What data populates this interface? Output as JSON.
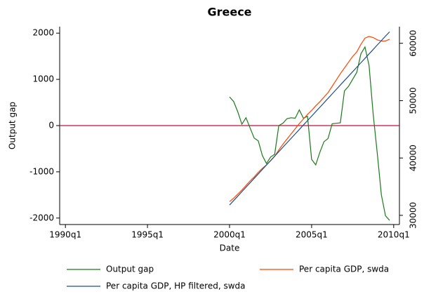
{
  "chart_data": {
    "type": "line",
    "title": "Greece",
    "x_label": "Date",
    "y_label": "Output gap",
    "x": [
      2000.0,
      2000.25,
      2000.5,
      2000.75,
      2001.0,
      2001.25,
      2001.5,
      2001.75,
      2002.0,
      2002.25,
      2002.5,
      2002.75,
      2003.0,
      2003.25,
      2003.5,
      2003.75,
      2004.0,
      2004.25,
      2004.5,
      2004.75,
      2005.0,
      2005.25,
      2005.5,
      2005.75,
      2006.0,
      2006.25,
      2006.5,
      2006.75,
      2007.0,
      2007.25,
      2007.5,
      2007.75,
      2008.0,
      2008.25,
      2008.5,
      2008.75,
      2009.0,
      2009.25,
      2009.5,
      2009.75
    ],
    "series": [
      {
        "name": "Output gap",
        "color": "#1a7a1a",
        "axis": "y",
        "values": [
          620,
          520,
          300,
          30,
          170,
          -50,
          -270,
          -330,
          -650,
          -820,
          -680,
          -620,
          0,
          50,
          150,
          170,
          160,
          340,
          160,
          200,
          -730,
          -850,
          -580,
          -350,
          -280,
          40,
          50,
          60,
          750,
          850,
          1000,
          1150,
          1550,
          1700,
          1300,
          250,
          -600,
          -1500,
          -1950,
          -2050
        ]
      },
      {
        "name": "Per capita GDP, swda",
        "color": "#ff4500",
        "axis": "y2",
        "values": [
          32400,
          33000,
          33700,
          34400,
          35200,
          36000,
          36700,
          37500,
          38200,
          38800,
          39500,
          40300,
          41400,
          42400,
          43300,
          44200,
          45100,
          46000,
          46800,
          47600,
          48300,
          49100,
          49800,
          50600,
          51400,
          52500,
          53600,
          54700,
          55700,
          56700,
          57700,
          58500,
          59800,
          60900,
          61200,
          61000,
          60600,
          60400,
          60400,
          60700
        ]
      },
      {
        "name": "Per capita GDP, HP filtered, swda",
        "color": "#1f4e8c",
        "axis": "y2",
        "values": [
          31800,
          32570,
          33350,
          34120,
          34900,
          35670,
          36450,
          37220,
          38000,
          38770,
          39550,
          40320,
          41100,
          41870,
          42650,
          43420,
          44200,
          44970,
          45750,
          46520,
          47300,
          48070,
          48850,
          49620,
          50400,
          51170,
          51950,
          52720,
          53500,
          54270,
          55050,
          55820,
          56600,
          57370,
          58150,
          58920,
          59700,
          60470,
          61250,
          62000
        ]
      }
    ],
    "xlim": [
      1989.65,
      2010.35
    ],
    "xticks": [
      {
        "value": 1990,
        "label": "1990q1"
      },
      {
        "value": 1995,
        "label": "1995q1"
      },
      {
        "value": 2000,
        "label": "2000q1"
      },
      {
        "value": 2005,
        "label": "2005q1"
      },
      {
        "value": 2010,
        "label": "2010q1"
      }
    ],
    "ylim": [
      -2140,
      2140
    ],
    "yticks": [
      -2000,
      -1000,
      0,
      1000,
      2000
    ],
    "y2lim": [
      28400,
      62900
    ],
    "y2ticks": [
      30000,
      40000,
      50000,
      60000
    ],
    "yline": {
      "value": 0,
      "color": "#c0103f"
    }
  }
}
